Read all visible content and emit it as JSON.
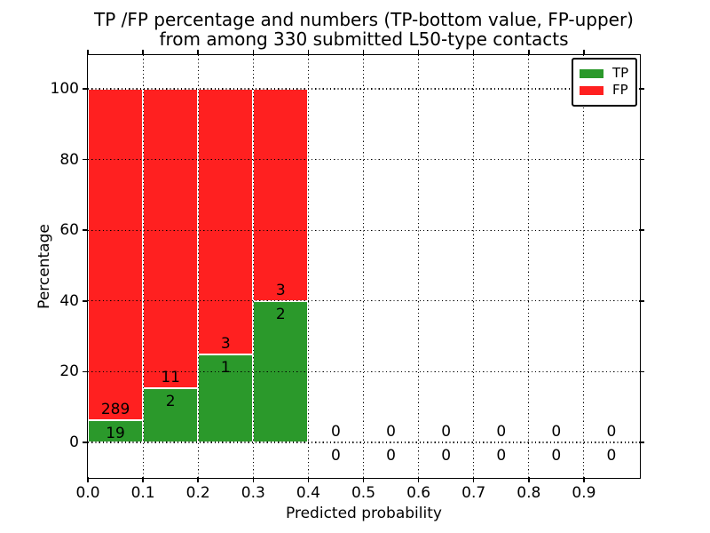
{
  "title": {
    "line1": "TP /FP percentage and numbers (TP-bottom value, FP-upper)",
    "line2": "from among 330 submitted L50-type contacts"
  },
  "axes": {
    "xlabel": "Predicted probability",
    "ylabel": "Percentage",
    "xticks": [
      "0.0",
      "0.1",
      "0.2",
      "0.3",
      "0.4",
      "0.5",
      "0.6",
      "0.7",
      "0.8",
      "0.9"
    ],
    "yticks": [
      "0",
      "20",
      "40",
      "60",
      "80",
      "100"
    ]
  },
  "legend": {
    "items": [
      {
        "label": "TP",
        "color": "#2B992B"
      },
      {
        "label": "FP",
        "color": "#FF2020"
      }
    ]
  },
  "chart_data": {
    "type": "bar",
    "stacked": true,
    "normalization": "percent within each bin (TP+FP = 100%)",
    "title": "TP /FP percentage and numbers (TP-bottom value, FP-upper) from among 330 submitted L50-type contacts",
    "xlabel": "Predicted probability",
    "ylabel": "Percentage",
    "categories": [
      "0.0-0.1",
      "0.1-0.2",
      "0.2-0.3",
      "0.3-0.4",
      "0.4-0.5",
      "0.5-0.6",
      "0.6-0.7",
      "0.7-0.8",
      "0.8-0.9",
      "0.9-1.0"
    ],
    "series": [
      {
        "name": "TP",
        "color": "#2B992B",
        "counts": [
          19,
          2,
          1,
          2,
          0,
          0,
          0,
          0,
          0,
          0
        ]
      },
      {
        "name": "FP",
        "color": "#FF2020",
        "counts": [
          289,
          11,
          3,
          3,
          0,
          0,
          0,
          0,
          0,
          0
        ]
      }
    ],
    "tp_percent_per_bin": [
      6.17,
      15.38,
      25.0,
      40.0,
      0,
      0,
      0,
      0,
      0,
      0
    ],
    "total_contacts": 330,
    "xlim": [
      0.0,
      1.0
    ],
    "ylim": [
      -10,
      110
    ],
    "grid": true,
    "grid_style": "dotted",
    "legend_position": "upper right",
    "bar_edge_color": "#FFFFFF"
  },
  "colors": {
    "tp": "#2B992B",
    "fp": "#FF2020",
    "grid": "#000000",
    "axis": "#000000",
    "background": "#FFFFFF"
  }
}
